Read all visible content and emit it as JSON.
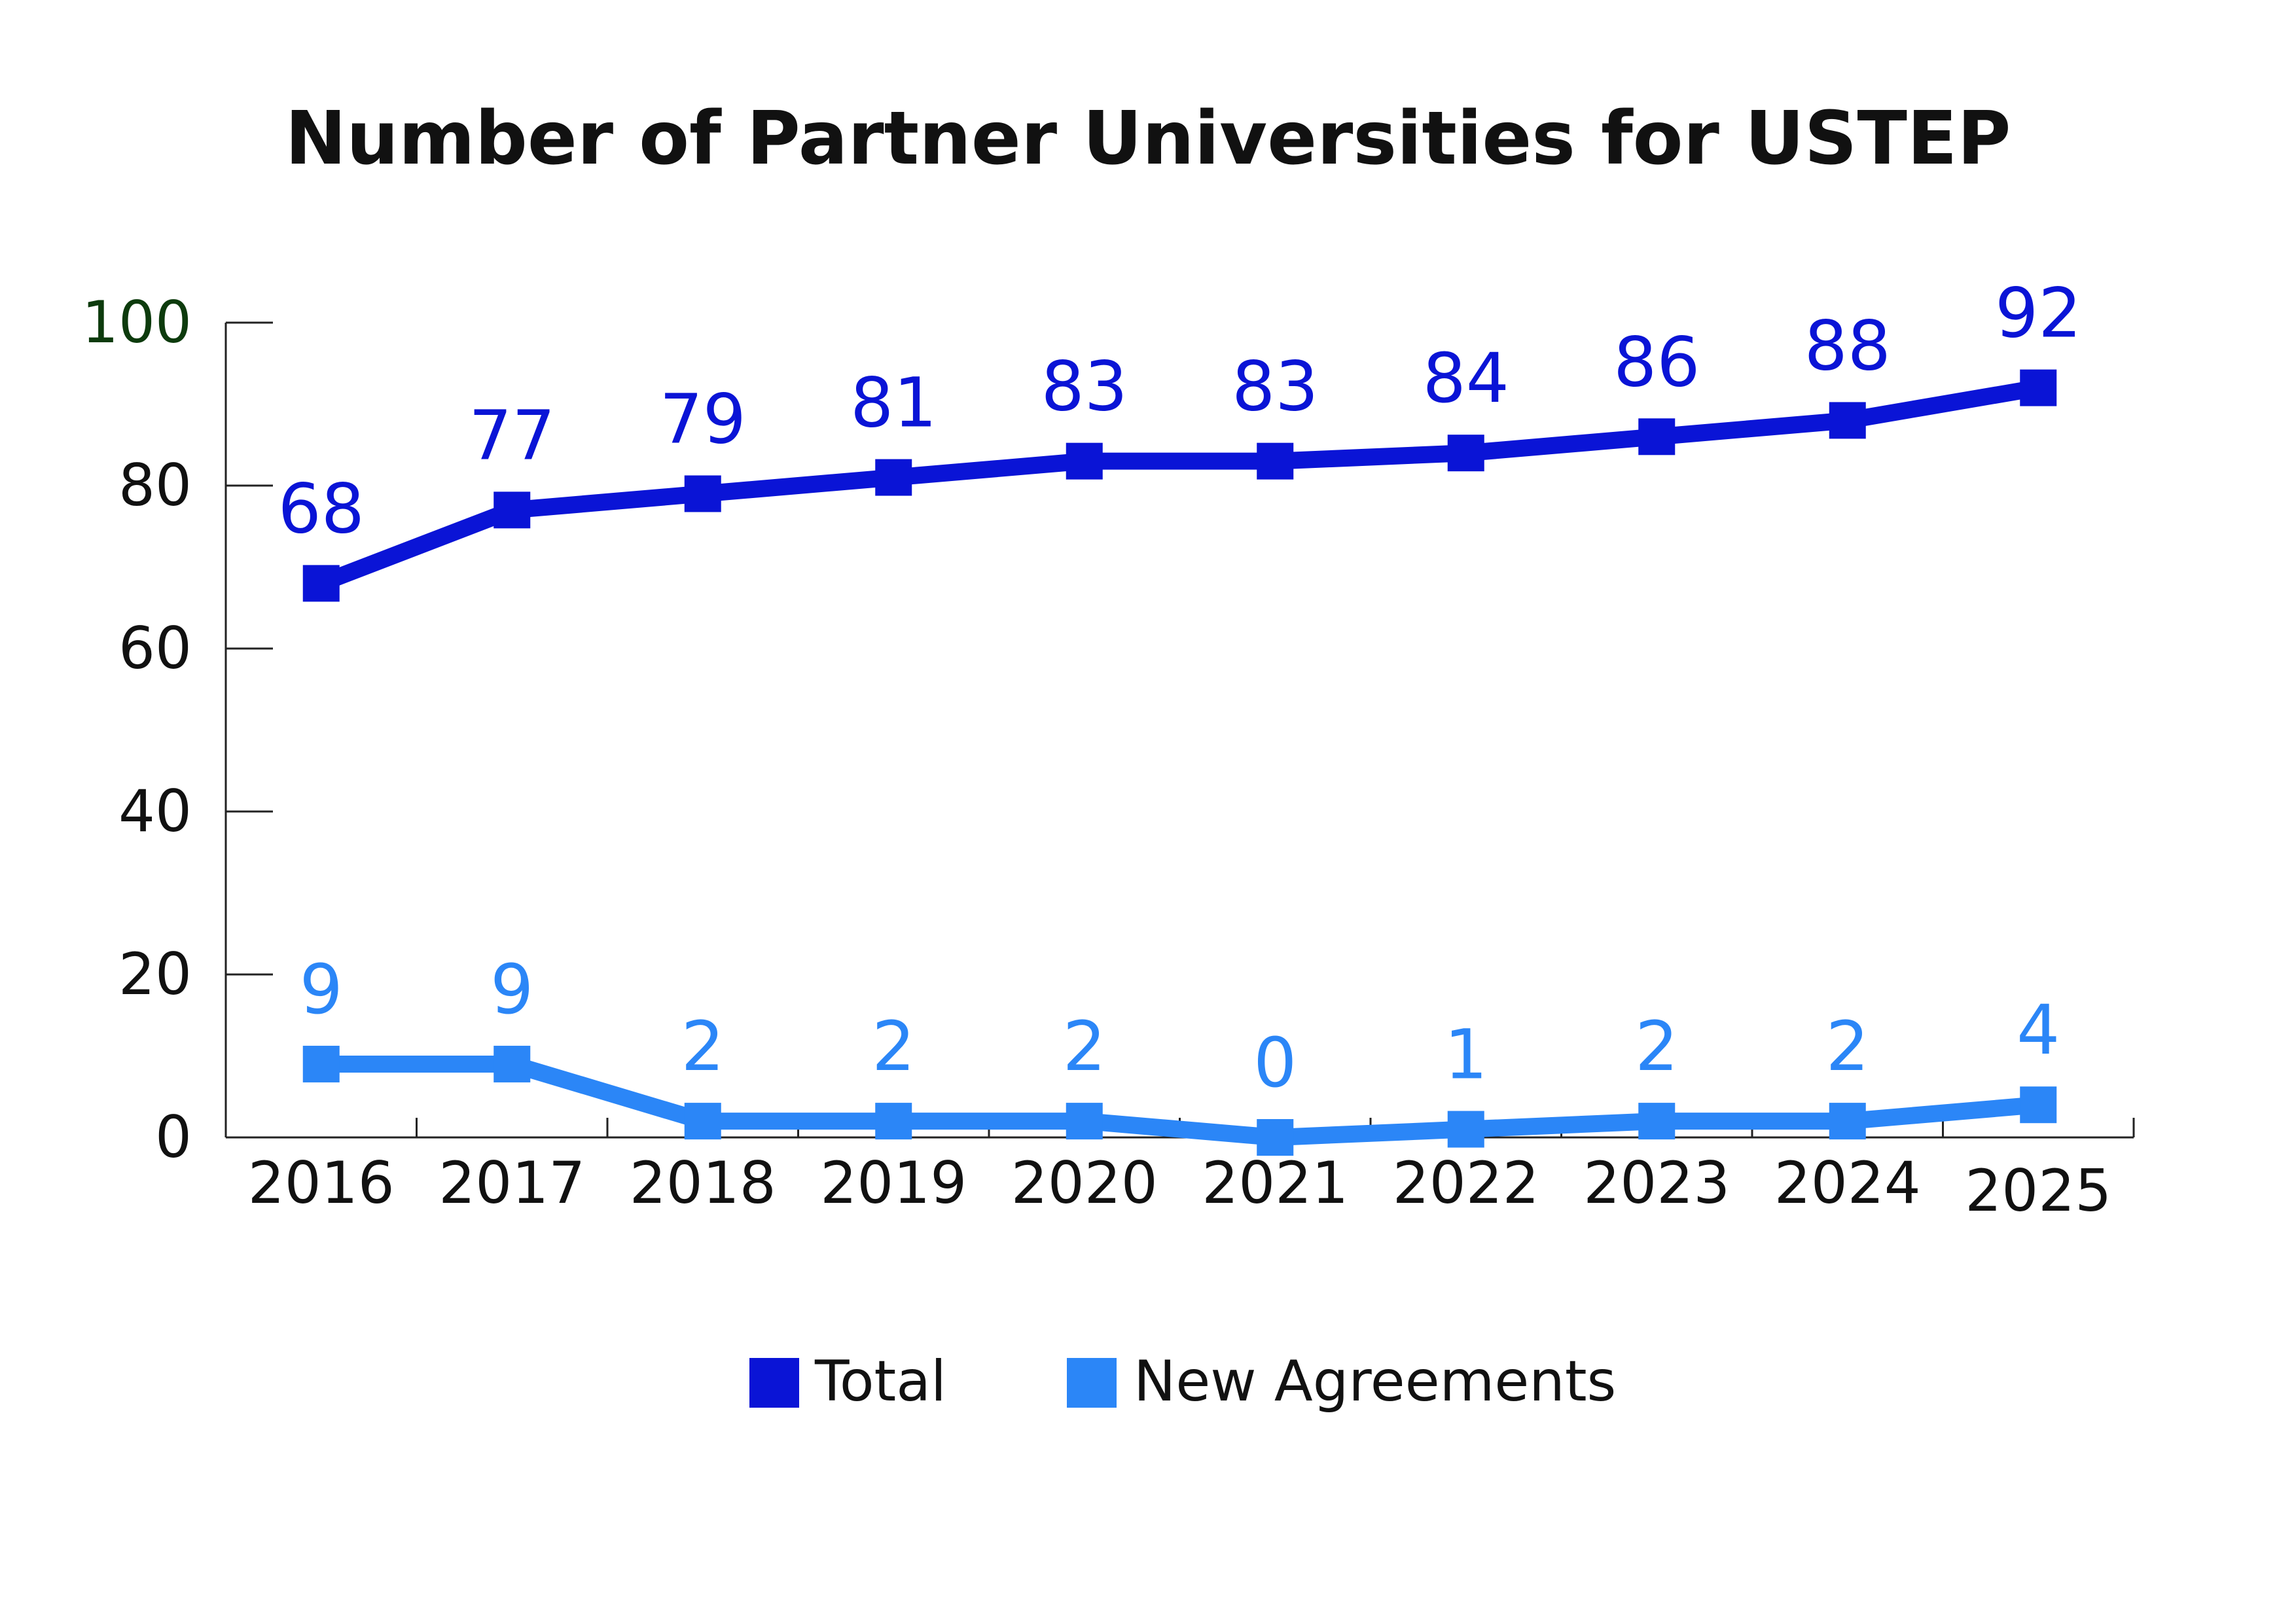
{
  "chart_data": {
    "type": "line",
    "title": "Number of Partner Universities for USTEP",
    "categories": [
      "2016",
      "2017",
      "2018",
      "2019",
      "2020",
      "2021",
      "2022",
      "2023",
      "2024",
      "2025"
    ],
    "series": [
      {
        "name": "Total",
        "values": [
          68,
          77,
          79,
          81,
          83,
          83,
          84,
          86,
          88,
          92
        ],
        "color": "#0a14d6"
      },
      {
        "name": "New Agreements",
        "values": [
          9,
          9,
          2,
          2,
          2,
          0,
          1,
          2,
          2,
          4
        ],
        "color": "#2b86f7"
      }
    ],
    "ylim": [
      0,
      100
    ],
    "yticks": [
      0,
      20,
      40,
      60,
      80,
      100
    ],
    "grid": false,
    "legend_position": "bottom-center",
    "data_labels": true
  }
}
